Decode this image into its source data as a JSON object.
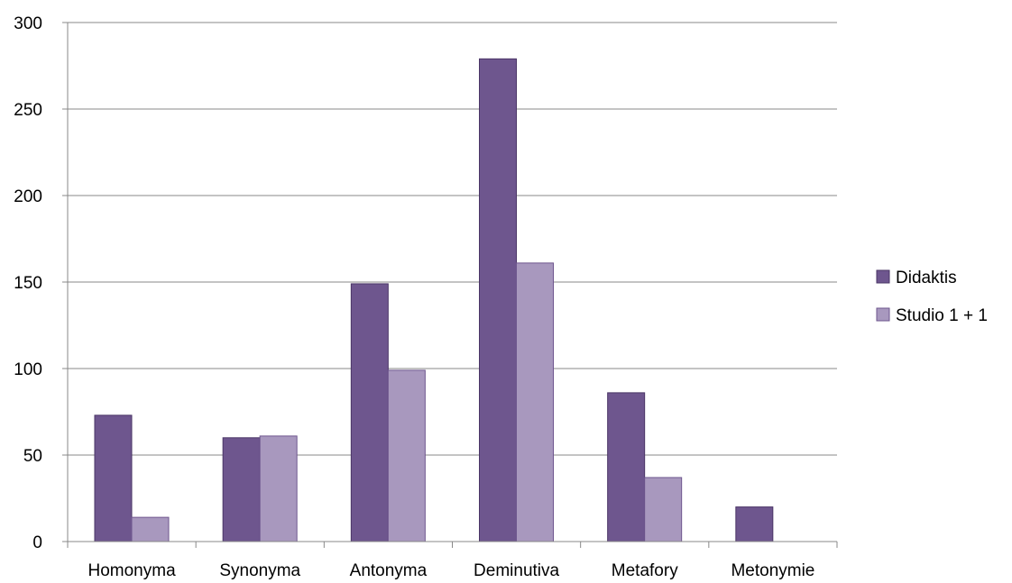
{
  "chart_data": {
    "type": "bar",
    "categories": [
      "Homonyma",
      "Synonyma",
      "Antonyma",
      "Deminutiva",
      "Metafory",
      "Metonymie"
    ],
    "series": [
      {
        "name": "Didaktis",
        "values": [
          73,
          60,
          149,
          279,
          86,
          20
        ],
        "color": "#6E568E",
        "stroke": "#4A3566"
      },
      {
        "name": "Studio 1 + 1",
        "values": [
          14,
          61,
          99,
          161,
          37,
          0
        ],
        "color": "#A898BE",
        "stroke": "#6E568E"
      }
    ],
    "ylim": [
      0,
      300
    ],
    "yticks": [
      0,
      50,
      100,
      150,
      200,
      250,
      300
    ],
    "grid": true,
    "legend_position": "right",
    "title": "",
    "xlabel": "",
    "ylabel": ""
  }
}
